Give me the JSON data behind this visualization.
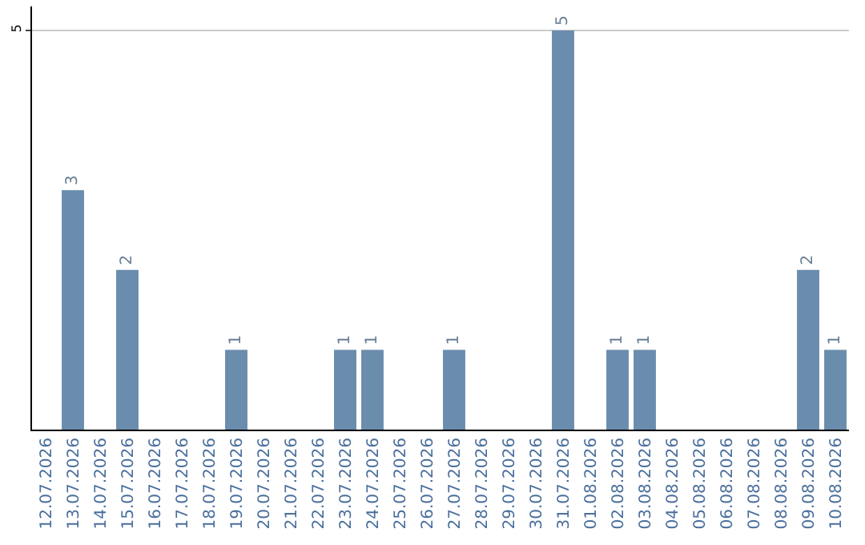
{
  "chart_data": {
    "type": "bar",
    "categories": [
      "12.07.2026",
      "13.07.2026",
      "14.07.2026",
      "15.07.2026",
      "16.07.2026",
      "17.07.2026",
      "18.07.2026",
      "19.07.2026",
      "20.07.2026",
      "21.07.2026",
      "22.07.2026",
      "23.07.2026",
      "24.07.2026",
      "25.07.2026",
      "26.07.2026",
      "27.07.2026",
      "28.07.2026",
      "29.07.2026",
      "30.07.2026",
      "31.07.2026",
      "01.08.2026",
      "02.08.2026",
      "03.08.2026",
      "04.08.2026",
      "05.08.2026",
      "06.08.2026",
      "07.08.2026",
      "08.08.2026",
      "09.08.2026",
      "10.08.2026"
    ],
    "values": [
      0,
      3,
      0,
      2,
      0,
      0,
      0,
      1,
      0,
      0,
      0,
      1,
      1,
      0,
      0,
      1,
      0,
      0,
      0,
      5,
      0,
      1,
      1,
      0,
      0,
      0,
      0,
      0,
      2,
      1
    ],
    "value_labels": [
      null,
      "3",
      null,
      "2",
      null,
      null,
      null,
      "1",
      null,
      null,
      null,
      "1",
      "1",
      null,
      null,
      "1",
      null,
      null,
      null,
      "5",
      null,
      "1",
      "1",
      null,
      null,
      null,
      null,
      null,
      "2",
      "1"
    ],
    "color": "#6a8cad",
    "ylim": [
      0,
      5.3
    ],
    "yticks": [
      5
    ],
    "grid": "y",
    "legend": false
  }
}
